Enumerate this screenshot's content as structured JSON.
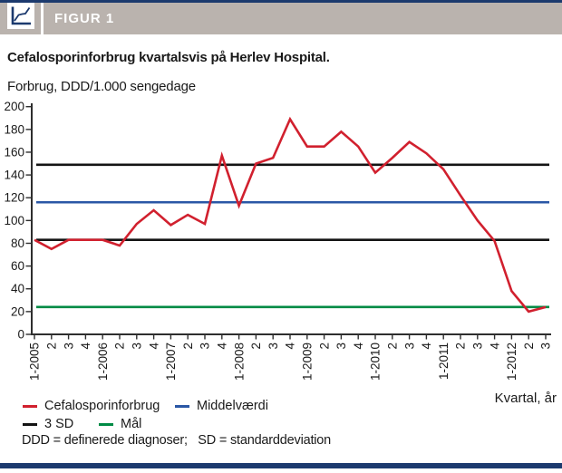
{
  "header": {
    "figure_label": "FIGUR 1"
  },
  "footnote": "DDD = definerede diagnoser;   SD = standarddeviation",
  "colors": {
    "navy": "#1c3a6e",
    "header_gray": "#bab3ae",
    "red": "#d1202e",
    "blue": "#2a57a5",
    "green": "#008b45",
    "black_line": "#141414",
    "axis": "#2e2e2e",
    "text": "#1a1a1a"
  },
  "legend": {
    "items": [
      {
        "label": "Cefalosporinforbrug",
        "color": "#d1202e"
      },
      {
        "label": "Middelværdi",
        "color": "#2a57a5"
      },
      {
        "label": "3 SD",
        "color": "#141414"
      },
      {
        "label": "Mål",
        "color": "#008b45"
      }
    ]
  },
  "chart_data": {
    "type": "line",
    "title": "Cefalosporinforbrug kvartalsvis på Herlev Hospital.",
    "ylabel": "Forbrug, DDD/1.000 sengedage",
    "xlabel": "Kvartal, år",
    "ylim": [
      0,
      200
    ],
    "ytick_step": 20,
    "grid": false,
    "legend_position": "bottom-left",
    "categories": [
      "1-2005",
      "2",
      "3",
      "4",
      "1-2006",
      "2",
      "3",
      "4",
      "1-2007",
      "2",
      "3",
      "4",
      "1-2008",
      "2",
      "3",
      "4",
      "1-2009",
      "2",
      "3",
      "4",
      "1-2010",
      "2",
      "3",
      "4",
      "1-2011",
      "2",
      "3",
      "4",
      "1-2012",
      "2",
      "3"
    ],
    "series": [
      {
        "name": "Cefalosporinforbrug",
        "type": "line",
        "color": "#d1202e",
        "values": [
          83,
          75,
          83,
          83,
          83,
          78,
          97,
          109,
          96,
          105,
          97,
          157,
          113,
          150,
          155,
          189,
          165,
          165,
          178,
          165,
          142,
          155,
          169,
          159,
          145,
          122,
          100,
          82,
          38,
          20,
          24
        ]
      },
      {
        "name": "Middelværdi",
        "type": "hline",
        "color": "#2a57a5",
        "y": [
          116
        ]
      },
      {
        "name": "3 SD",
        "type": "hline",
        "color": "#141414",
        "y": [
          149,
          83
        ]
      },
      {
        "name": "Mål",
        "type": "hline",
        "color": "#008b45",
        "y": [
          24
        ]
      }
    ]
  }
}
